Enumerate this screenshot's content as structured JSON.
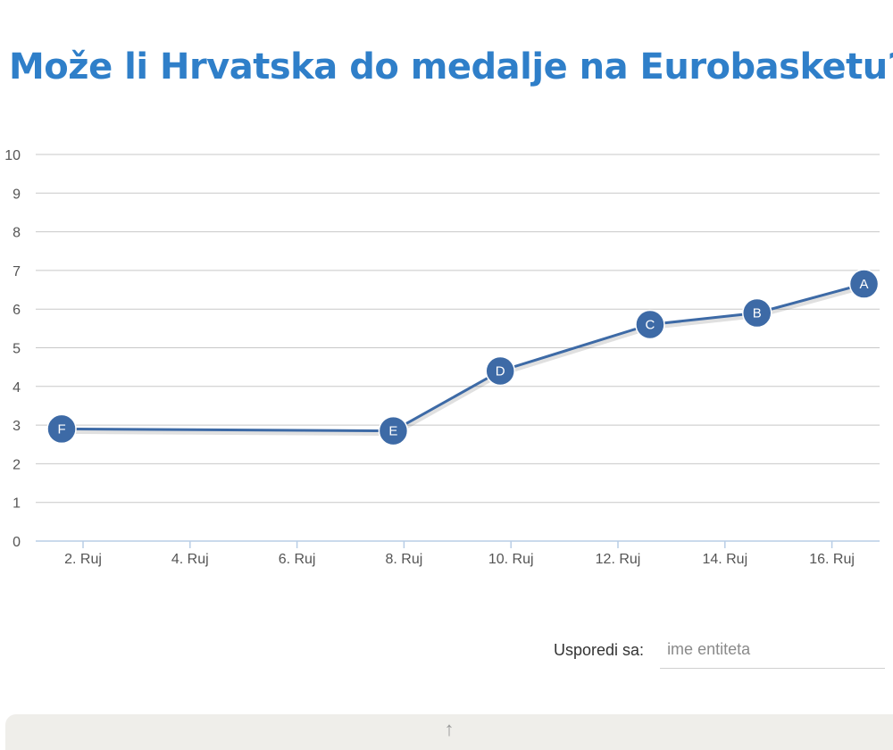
{
  "title": "Može li Hrvatska do medalje na Eurobasketu?",
  "chart_data": {
    "type": "line",
    "title": "Može li Hrvatska do medalje na Eurobasketu?",
    "xlabel": "",
    "ylabel": "",
    "ylim": [
      0,
      10
    ],
    "yticks": [
      "0",
      "1",
      "2",
      "3",
      "4",
      "5",
      "6",
      "7",
      "8",
      "9",
      "10"
    ],
    "xticks": [
      "2. Ruj",
      "4. Ruj",
      "6. Ruj",
      "8. Ruj",
      "10. Ruj",
      "12. Ruj",
      "14. Ruj",
      "16. Ruj"
    ],
    "xtick_days": [
      2,
      4,
      6,
      8,
      10,
      12,
      14,
      16
    ],
    "grid": true,
    "legend": "none",
    "series": [
      {
        "color": "#3d6aa6",
        "points": [
          {
            "x": "1.6. Ruj",
            "day": 1.6,
            "y": 2.9,
            "label": "F"
          },
          {
            "x": "7.8. Ruj",
            "day": 7.8,
            "y": 2.85,
            "label": "E"
          },
          {
            "x": "9.8. Ruj",
            "day": 9.8,
            "y": 4.4,
            "label": "D"
          },
          {
            "x": "12.6. Ruj",
            "day": 12.6,
            "y": 5.6,
            "label": "C"
          },
          {
            "x": "14.6. Ruj",
            "day": 14.6,
            "y": 5.9,
            "label": "B"
          },
          {
            "x": "16.6. Ruj",
            "day": 16.6,
            "y": 6.65,
            "label": "A"
          }
        ]
      }
    ]
  },
  "compare": {
    "label": "Usporedi sa:",
    "placeholder": "ime entiteta",
    "value": ""
  },
  "bottom_bar": {
    "icon": "arrow-up-icon",
    "glyph": "↑"
  },
  "colors": {
    "title": "#2f7fc9",
    "line": "#3d6aa6",
    "grid": "#c8c8c8",
    "axis": "#b8cde6"
  }
}
